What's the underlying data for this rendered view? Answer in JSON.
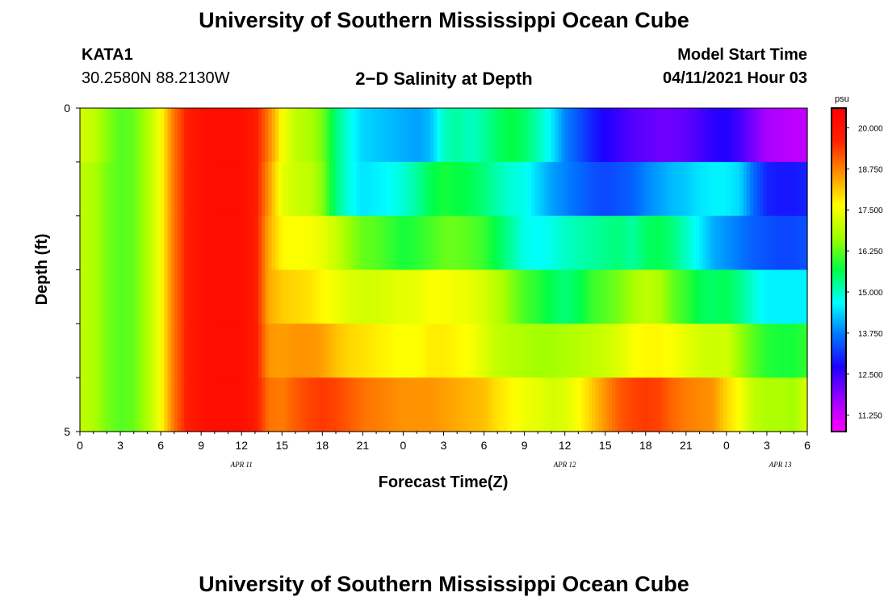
{
  "header": {
    "title": "University of Southern Mississippi Ocean Cube",
    "station": "KATA1",
    "coords": "30.2580N  88.2130W",
    "subtitle": "2−D Salinity at Depth",
    "model_start_label": "Model Start Time",
    "model_start_value": "04/11/2021 Hour 03"
  },
  "footer": {
    "title": "University of Southern Mississippi Ocean Cube"
  },
  "chart_data": {
    "type": "heatmap",
    "xlabel": "Forecast Time(Z)",
    "ylabel": "Depth (ft)",
    "x_hours": [
      0,
      1,
      2,
      3,
      4,
      5,
      6,
      7,
      8,
      9,
      10,
      11,
      12,
      13,
      14,
      15,
      16,
      17,
      18,
      19,
      20,
      21,
      22,
      23,
      24,
      25,
      26,
      27,
      28,
      29,
      30,
      31,
      32,
      33,
      34,
      35,
      36,
      37,
      38,
      39,
      40,
      41,
      42,
      43,
      44,
      45,
      46,
      47,
      48,
      49,
      50,
      51,
      52,
      53,
      54
    ],
    "x_tick_labels": [
      "0",
      "3",
      "6",
      "9",
      "12",
      "15",
      "18",
      "21",
      "0",
      "3",
      "6",
      "9",
      "12",
      "15",
      "18",
      "21",
      "0",
      "3",
      "6"
    ],
    "date_labels": [
      {
        "text": "APR  11",
        "hour": 12
      },
      {
        "text": "APR  12",
        "hour": 36
      },
      {
        "text": "APR  13",
        "hour": 52
      }
    ],
    "y_range": [
      0,
      5
    ],
    "y_tick_labels": [
      "0",
      "5"
    ],
    "layers": [
      {
        "values": [
          17.2,
          17.0,
          16.5,
          16.2,
          16.3,
          16.8,
          17.6,
          18.9,
          19.7,
          20.1,
          20.2,
          20.2,
          20.2,
          19.8,
          18.8,
          17.6,
          17.0,
          16.8,
          16.4,
          15.4,
          14.8,
          14.4,
          14.3,
          14.2,
          14.1,
          14.0,
          14.2,
          15.0,
          15.2,
          15.0,
          15.2,
          15.5,
          15.7,
          15.5,
          15.1,
          14.6,
          13.8,
          13.4,
          13.0,
          12.7,
          12.5,
          12.3,
          12.2,
          12.1,
          12.1,
          12.2,
          12.4,
          12.6,
          12.7,
          12.4,
          12.0,
          11.6,
          11.5,
          11.4,
          11.4
        ]
      },
      {
        "values": [
          17.0,
          16.8,
          16.4,
          16.2,
          16.3,
          16.8,
          17.6,
          18.9,
          19.7,
          20.1,
          20.2,
          20.2,
          20.2,
          19.8,
          18.6,
          17.4,
          17.1,
          17.0,
          16.5,
          15.4,
          14.8,
          14.5,
          14.6,
          14.7,
          14.9,
          15.2,
          15.6,
          15.8,
          15.7,
          15.6,
          15.4,
          15.1,
          14.9,
          14.8,
          14.4,
          14.0,
          13.8,
          13.6,
          13.4,
          13.3,
          13.4,
          13.5,
          13.8,
          14.0,
          14.2,
          14.3,
          14.5,
          14.6,
          14.6,
          14.4,
          13.6,
          13.0,
          12.9,
          12.9,
          13.0
        ]
      },
      {
        "values": [
          17.0,
          16.8,
          16.4,
          16.2,
          16.3,
          16.8,
          17.6,
          18.9,
          19.7,
          20.1,
          20.2,
          20.2,
          20.2,
          19.8,
          18.4,
          17.7,
          17.6,
          17.6,
          17.4,
          17.1,
          16.6,
          16.3,
          16.2,
          16.0,
          15.8,
          15.9,
          16.1,
          16.3,
          16.3,
          16.2,
          16.0,
          15.6,
          15.2,
          14.8,
          14.7,
          14.8,
          15.0,
          15.1,
          15.2,
          15.3,
          15.4,
          15.2,
          15.5,
          15.6,
          15.4,
          15.0,
          14.6,
          14.1,
          13.9,
          13.7,
          13.5,
          13.4,
          13.3,
          13.3,
          13.4
        ]
      },
      {
        "values": [
          17.0,
          16.8,
          16.4,
          16.2,
          16.3,
          16.8,
          17.6,
          18.9,
          19.7,
          20.1,
          20.2,
          20.2,
          20.2,
          19.8,
          18.4,
          18.1,
          18.0,
          17.9,
          17.7,
          17.5,
          17.3,
          17.2,
          17.2,
          17.3,
          17.4,
          17.4,
          17.6,
          17.6,
          17.5,
          17.4,
          17.2,
          16.9,
          16.5,
          16.1,
          15.9,
          15.6,
          15.4,
          15.6,
          16.0,
          16.2,
          16.4,
          16.7,
          17.0,
          16.8,
          16.3,
          16.0,
          15.6,
          15.5,
          15.6,
          15.3,
          14.9,
          14.6,
          14.6,
          14.6,
          14.6
        ]
      },
      {
        "values": [
          17.0,
          16.8,
          16.4,
          16.2,
          16.3,
          16.8,
          17.6,
          18.9,
          19.7,
          20.1,
          20.2,
          20.2,
          20.2,
          19.8,
          18.6,
          18.5,
          18.6,
          18.6,
          18.5,
          18.2,
          18.0,
          17.9,
          17.8,
          17.7,
          17.6,
          17.6,
          17.8,
          17.8,
          17.7,
          17.6,
          17.3,
          17.0,
          16.9,
          16.8,
          16.7,
          16.7,
          16.8,
          16.9,
          17.0,
          17.1,
          17.3,
          17.6,
          17.7,
          17.7,
          17.6,
          17.4,
          17.2,
          17.1,
          17.2,
          16.6,
          16.2,
          15.9,
          15.8,
          15.8,
          16.0
        ]
      },
      {
        "values": [
          17.0,
          16.8,
          16.4,
          16.2,
          16.3,
          16.8,
          17.6,
          18.9,
          19.7,
          20.1,
          20.2,
          20.2,
          20.2,
          19.8,
          18.9,
          18.8,
          19.1,
          19.3,
          19.4,
          19.3,
          19.1,
          18.9,
          18.8,
          18.7,
          18.6,
          18.6,
          18.6,
          18.5,
          18.4,
          18.3,
          18.2,
          17.9,
          17.7,
          17.5,
          17.4,
          17.2,
          17.3,
          17.6,
          18.1,
          18.6,
          19.1,
          19.3,
          19.4,
          19.3,
          19.0,
          18.8,
          18.7,
          18.6,
          18.0,
          17.6,
          17.0,
          16.8,
          16.8,
          16.7,
          17.3
        ]
      }
    ],
    "colorbar": {
      "unit": "psu",
      "range": [
        10.75,
        20.6
      ],
      "tick_values": [
        20.0,
        18.75,
        17.5,
        16.25,
        15.0,
        13.75,
        12.5,
        11.25
      ],
      "tick_labels": [
        "20.000",
        "18.750",
        "17.500",
        "16.250",
        "15.000",
        "13.750",
        "12.500",
        "11.250"
      ],
      "colors": [
        "#ff00ff",
        "#9c00ff",
        "#1c00ff",
        "#0078ff",
        "#00ffff",
        "#00ff44",
        "#a0ff00",
        "#ffff00",
        "#ff9000",
        "#ff2000",
        "#ff0000"
      ]
    }
  }
}
